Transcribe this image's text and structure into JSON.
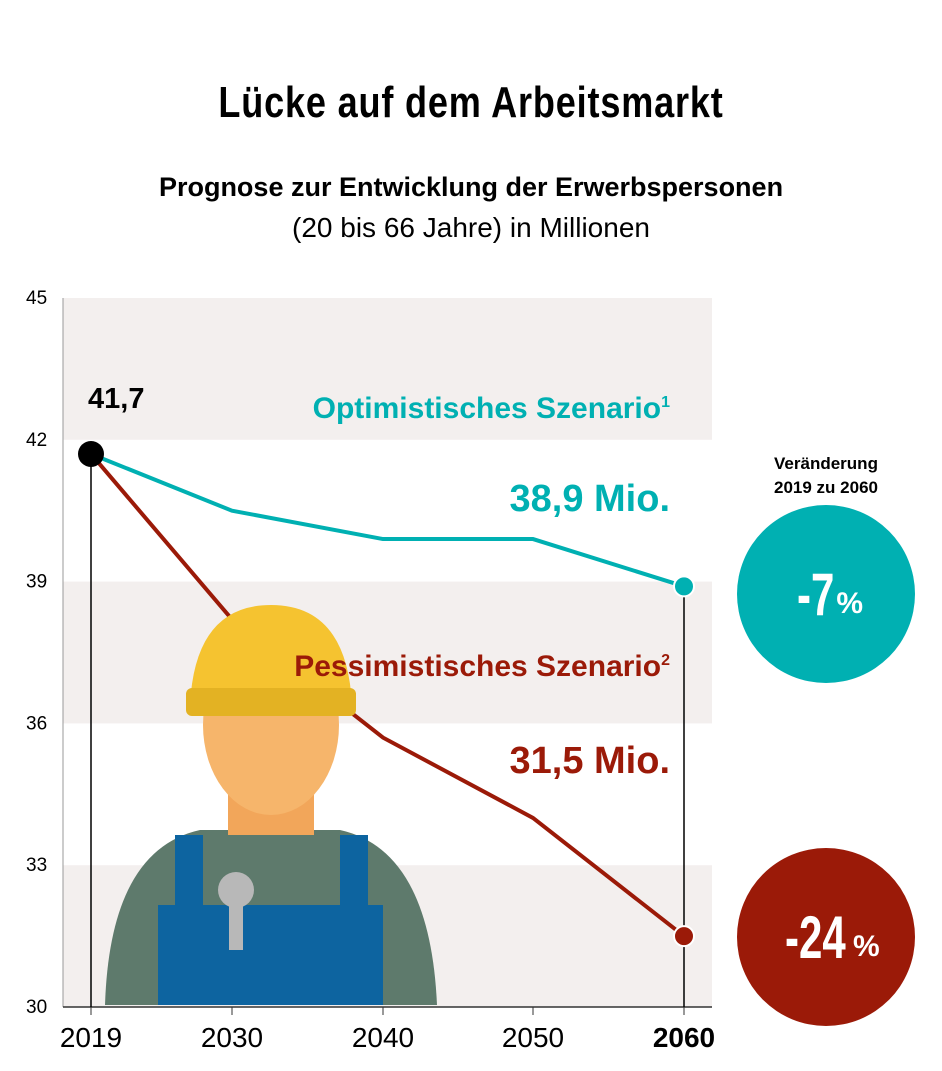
{
  "title": "Lücke auf dem Arbeitsmarkt",
  "subtitle_bold": "Prognose zur Entwicklung der Erwerbspersonen",
  "subtitle": "(20 bis 66 Jahre) in Millionen",
  "chart_data": {
    "type": "line",
    "x": [
      2019,
      2030,
      2040,
      2050,
      2060
    ],
    "x_tick_labels": [
      "2019",
      "2030",
      "2040",
      "2050",
      "2060"
    ],
    "y_ticks": [
      "45",
      "42",
      "39",
      "36",
      "33",
      "30"
    ],
    "ylim": [
      30,
      45
    ],
    "series": [
      {
        "name": "Optimistisches Szenario",
        "footnote": "1",
        "values": [
          41.7,
          40.5,
          39.9,
          39.9,
          38.9
        ],
        "color": "#00b0b2",
        "end_label": "38,9 Mio.",
        "change": "-7",
        "change_unit": "%"
      },
      {
        "name": "Pessimistisches Szenario",
        "footnote": "2",
        "values": [
          41.7,
          38.2,
          35.7,
          34.0,
          31.5
        ],
        "color": "#9b1a08",
        "end_label": "31,5 Mio.",
        "change": "-24",
        "change_unit": "%"
      }
    ],
    "start_label": "41,7",
    "change_header_1": "Veränderung",
    "change_header_2": "2019 zu 2060",
    "band_color": "#f3efee"
  }
}
